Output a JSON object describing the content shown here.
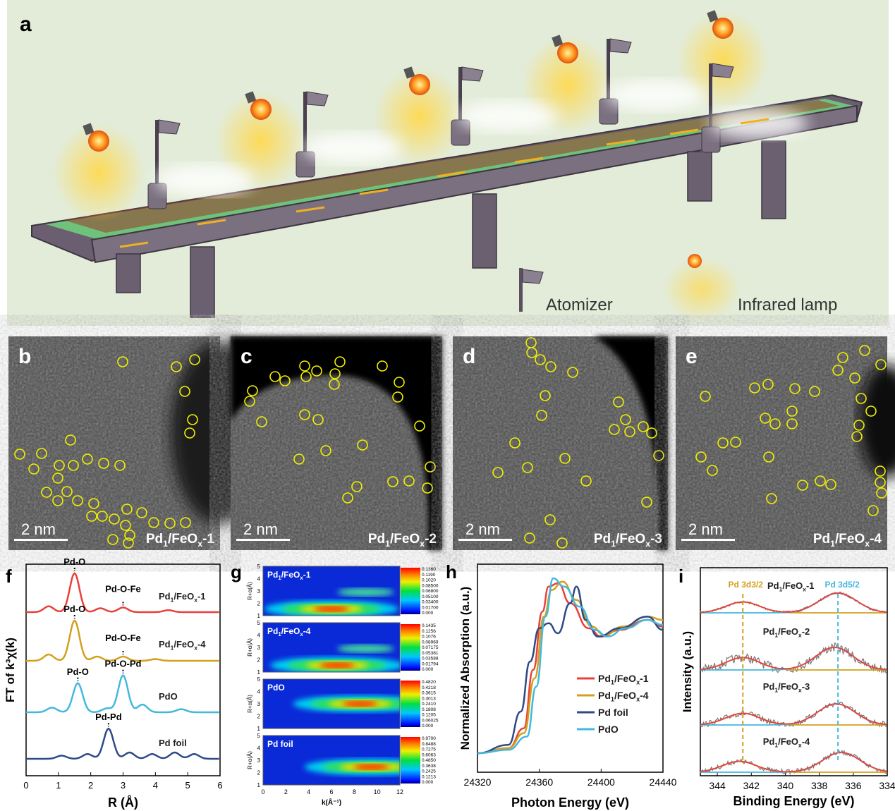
{
  "panels": {
    "a": {
      "letter": "a",
      "legend_atomizer": "Atomizer",
      "legend_lamp": "Infrared lamp"
    },
    "b": {
      "letter": "b",
      "scale": "2 nm",
      "sample": "Pd1/FeOx-1"
    },
    "c": {
      "letter": "c",
      "scale": "2 nm",
      "sample": "Pd1/FeOx-2"
    },
    "d": {
      "letter": "d",
      "scale": "2 nm",
      "sample": "Pd1/FeOx-3"
    },
    "e": {
      "letter": "e",
      "scale": "2 nm",
      "sample": "Pd1/FeOx-4"
    },
    "f": {
      "letter": "f"
    },
    "g": {
      "letter": "g"
    },
    "h": {
      "letter": "h"
    },
    "i": {
      "letter": "i"
    }
  },
  "colors": {
    "red": "#e8413a",
    "gold": "#d2a01c",
    "navy": "#2e4a86",
    "cyan": "#44b8dc",
    "yellow_circle": "#f2f000",
    "bg_a": "#e3ecd9"
  },
  "chart_data": [
    {
      "id": "f",
      "type": "line",
      "xlabel": "R (Å)",
      "ylabel": "FT of k³χ(k)",
      "xlim": [
        0,
        6
      ],
      "xticks": [
        "0",
        "1",
        "2",
        "3",
        "4",
        "5",
        "6"
      ],
      "series": [
        {
          "name": "Pd1/FeOx-1",
          "color": "#e8413a",
          "peaks": [
            [
              0.7,
              0.15
            ],
            [
              1.5,
              1.0
            ],
            [
              2.3,
              0.1
            ],
            [
              3.0,
              0.12
            ],
            [
              4.4,
              0.05
            ]
          ],
          "annotations": [
            "Pd-O",
            "Pd-O-Fe"
          ]
        },
        {
          "name": "Pd1/FeOx-4",
          "color": "#d2a01c",
          "peaks": [
            [
              0.7,
              0.15
            ],
            [
              1.5,
              0.95
            ],
            [
              2.2,
              0.1
            ],
            [
              3.0,
              0.1
            ],
            [
              4.0,
              0.04
            ]
          ],
          "annotations": [
            "Pd-O",
            "Pd-O-Fe"
          ]
        },
        {
          "name": "PdO",
          "color": "#44b8dc",
          "peaks": [
            [
              0.8,
              0.12
            ],
            [
              1.6,
              0.75
            ],
            [
              2.5,
              0.1
            ],
            [
              3.0,
              0.95
            ],
            [
              3.6,
              0.2
            ],
            [
              4.8,
              0.08
            ]
          ],
          "annotations": [
            "Pd-O",
            "Pd-O-Pd"
          ]
        },
        {
          "name": "Pd foil",
          "color": "#2e4a86",
          "peaks": [
            [
              1.1,
              0.1
            ],
            [
              1.9,
              0.15
            ],
            [
              2.55,
              0.95
            ],
            [
              3.2,
              0.2
            ],
            [
              3.9,
              0.15
            ],
            [
              4.6,
              0.2
            ],
            [
              5.2,
              0.15
            ]
          ],
          "annotations": [
            "Pd-Pd"
          ]
        }
      ]
    },
    {
      "id": "g",
      "type": "heatmap",
      "xlabel": "k(Å⁻¹)",
      "ylabel": "R+α(Å)",
      "xlim": [
        0,
        12
      ],
      "ylim": [
        1,
        5
      ],
      "xticks": [
        "0",
        "2",
        "4",
        "6",
        "8",
        "10",
        "12"
      ],
      "yticks": [
        "1",
        "2",
        "3",
        "4",
        "5"
      ],
      "maps": [
        {
          "name": "Pd1/FeOx-1",
          "colorbar": [
            "0.1360",
            "0.1190",
            "0.1020",
            "0.08500",
            "0.06800",
            "0.05100",
            "0.03400",
            "0.01700",
            "0.000"
          ],
          "max_at": [
            6,
            1.55
          ]
        },
        {
          "name": "Pd1/FeOx-4",
          "colorbar": [
            "0.1435",
            "0.1256",
            "0.1076",
            "0.08969",
            "0.07175",
            "0.05381",
            "0.03588",
            "0.01794",
            "0.000"
          ],
          "max_at": [
            6.5,
            1.55
          ]
        },
        {
          "name": "PdO",
          "colorbar": [
            "0.4820",
            "0.4218",
            "0.3615",
            "0.3013",
            "0.2410",
            "0.1808",
            "0.1205",
            "0.06025",
            "0.000"
          ],
          "max_at": [
            8.5,
            3.0
          ]
        },
        {
          "name": "Pd foil",
          "colorbar": [
            "0.9700",
            "0.8488",
            "0.7275",
            "0.6063",
            "0.4850",
            "0.3638",
            "0.2425",
            "0.1213",
            "0.000"
          ],
          "max_at": [
            9.5,
            2.45
          ]
        }
      ]
    },
    {
      "id": "h",
      "type": "line",
      "xlabel": "Photon Energy (eV)",
      "ylabel": "Normalized Absorption (a.u.)",
      "xlim": [
        24320,
        24440
      ],
      "xticks": [
        "24320",
        "24360",
        "24400",
        "24440"
      ],
      "series": [
        {
          "name": "Pd1/FeOx-1",
          "color": "#e8413a",
          "x": [
            24320,
            24340,
            24350,
            24356,
            24362,
            24366,
            24372,
            24380,
            24392,
            24400,
            24412,
            24430,
            24440
          ],
          "y": [
            0.0,
            0.03,
            0.15,
            0.5,
            0.85,
            1.0,
            1.02,
            0.9,
            0.75,
            0.7,
            0.74,
            0.8,
            0.76
          ]
        },
        {
          "name": "Pd1/FeOx-4",
          "color": "#d2a01c",
          "x": [
            24320,
            24340,
            24350,
            24357,
            24363,
            24368,
            24375,
            24384,
            24394,
            24402,
            24414,
            24430,
            24440
          ],
          "y": [
            0.0,
            0.03,
            0.12,
            0.45,
            0.82,
            0.98,
            1.03,
            0.92,
            0.76,
            0.71,
            0.76,
            0.82,
            0.8
          ]
        },
        {
          "name": "Pd foil",
          "color": "#2e4a86",
          "x": [
            24320,
            24340,
            24348,
            24354,
            24360,
            24366,
            24372,
            24380,
            24384,
            24390,
            24398,
            24412,
            24430,
            24440
          ],
          "y": [
            0.0,
            0.05,
            0.25,
            0.55,
            0.75,
            0.78,
            0.72,
            0.9,
            1.0,
            0.8,
            0.7,
            0.75,
            0.82,
            0.74
          ]
        },
        {
          "name": "PdO",
          "color": "#44b8dc",
          "x": [
            24320,
            24340,
            24352,
            24358,
            24364,
            24369,
            24376,
            24386,
            24396,
            24404,
            24416,
            24430,
            24440
          ],
          "y": [
            0.0,
            0.02,
            0.1,
            0.4,
            0.82,
            1.05,
            1.0,
            0.88,
            0.74,
            0.7,
            0.75,
            0.8,
            0.77
          ]
        }
      ]
    },
    {
      "id": "i",
      "type": "line",
      "xlabel": "Binding Energy (eV)",
      "ylabel": "Intensity (a.u.)",
      "xlim": [
        345,
        334
      ],
      "xticks": [
        "344",
        "342",
        "340",
        "338",
        "336",
        "334"
      ],
      "reference_lines": [
        {
          "label": "Pd 3d3/2",
          "x": 342.5,
          "color": "#d2a01c"
        },
        {
          "label": "Pd 3d5/2",
          "x": 336.9,
          "color": "#44b8dc"
        }
      ],
      "series": [
        {
          "name": "Pd1/FeOx-1",
          "peak_3d32": 342.5,
          "peak_3d52": 336.9,
          "noise": 0.15
        },
        {
          "name": "Pd1/FeOx-2",
          "peak_3d32": 342.5,
          "peak_3d52": 337.1,
          "noise": 0.5
        },
        {
          "name": "Pd1/FeOx-3",
          "peak_3d32": 342.5,
          "peak_3d52": 337.0,
          "noise": 0.35
        },
        {
          "name": "Pd1/FeOx-4",
          "peak_3d32": 342.7,
          "peak_3d52": 336.7,
          "noise": 0.3
        }
      ]
    }
  ]
}
